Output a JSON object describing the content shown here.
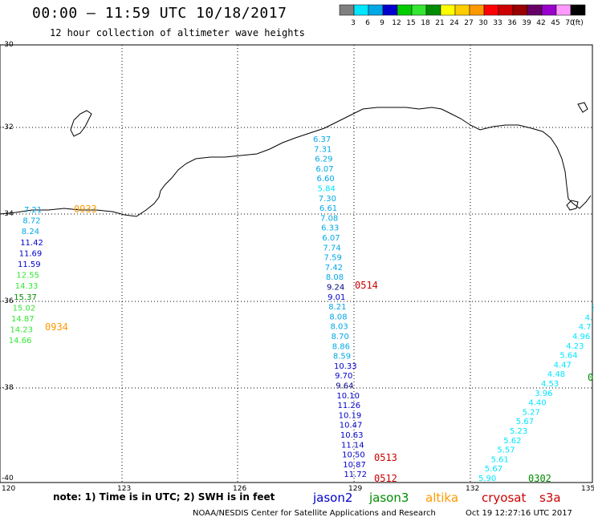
{
  "header": {
    "title": "00:00 – 11:59 UTC 10/18/2017",
    "subtitle": "12 hour collection of altimeter wave heights"
  },
  "legend": {
    "unit": "(ft)",
    "bins": [
      {
        "label": "3",
        "color": "#7f7f7f"
      },
      {
        "label": "6",
        "color": "#00e6ff"
      },
      {
        "label": "9",
        "color": "#00a8e6"
      },
      {
        "label": "12",
        "color": "#0000cc"
      },
      {
        "label": "15",
        "color": "#00cc00"
      },
      {
        "label": "18",
        "color": "#33e633"
      },
      {
        "label": "21",
        "color": "#008c00"
      },
      {
        "label": "24",
        "color": "#ffff00"
      },
      {
        "label": "27",
        "color": "#ffcc00"
      },
      {
        "label": "30",
        "color": "#ff9900"
      },
      {
        "label": "33",
        "color": "#ff0000"
      },
      {
        "label": "36",
        "color": "#cc0000"
      },
      {
        "label": "39",
        "color": "#990000"
      },
      {
        "label": "42",
        "color": "#660066"
      },
      {
        "label": "45",
        "color": "#9900cc"
      },
      {
        "label": "70",
        "color": "#ff99ff"
      },
      {
        "label": "",
        "color": "#000000"
      }
    ]
  },
  "axes": {
    "lat_ticks": [
      "-30",
      "-32",
      "-34",
      "-36",
      "-38",
      "-40"
    ],
    "lon_ticks": [
      "120",
      "123",
      "126",
      "129",
      "132",
      "135"
    ]
  },
  "passes": [
    {
      "id": "pass-west",
      "values": [
        {
          "v": "7.21",
          "c": "#00a8e6"
        },
        {
          "v": "8.72",
          "c": "#00a8e6"
        },
        {
          "v": "8.24",
          "c": "#00a8e6"
        },
        {
          "v": "11.42",
          "c": "#0000cc"
        },
        {
          "v": "11.69",
          "c": "#0000cc"
        },
        {
          "v": "11.59",
          "c": "#0000cc"
        },
        {
          "v": "12.55",
          "c": "#33e633"
        },
        {
          "v": "14.33",
          "c": "#33e633"
        },
        {
          "v": "15.37",
          "c": "#008c00"
        },
        {
          "v": "15.02",
          "c": "#33e633"
        },
        {
          "v": "14.87",
          "c": "#33e633"
        },
        {
          "v": "14.23",
          "c": "#33e633"
        },
        {
          "v": "14.66",
          "c": "#33e633"
        }
      ],
      "times": [
        {
          "t": "0933",
          "c": "#ff9900"
        },
        {
          "t": "0934",
          "c": "#ff9900"
        }
      ]
    },
    {
      "id": "pass-central",
      "values": [
        {
          "v": "6.37",
          "c": "#00a8e6"
        },
        {
          "v": "7.31",
          "c": "#00a8e6"
        },
        {
          "v": "6.29",
          "c": "#00a8e6"
        },
        {
          "v": "6.07",
          "c": "#00a8e6"
        },
        {
          "v": "6.60",
          "c": "#00a8e6"
        },
        {
          "v": "5.84",
          "c": "#00e6ff"
        },
        {
          "v": "7.30",
          "c": "#00a8e6"
        },
        {
          "v": "6.61",
          "c": "#00a8e6"
        },
        {
          "v": "7.08",
          "c": "#00a8e6"
        },
        {
          "v": "6.33",
          "c": "#00a8e6"
        },
        {
          "v": "6.07",
          "c": "#00a8e6"
        },
        {
          "v": "7.74",
          "c": "#00a8e6"
        },
        {
          "v": "7.59",
          "c": "#00a8e6"
        },
        {
          "v": "7.42",
          "c": "#00a8e6"
        },
        {
          "v": "8.08",
          "c": "#00a8e6"
        },
        {
          "v": "9.24",
          "c": "#000080"
        },
        {
          "v": "9.01",
          "c": "#0000cc"
        },
        {
          "v": "8.21",
          "c": "#00a8e6"
        },
        {
          "v": "8.08",
          "c": "#00a8e6"
        },
        {
          "v": "8.03",
          "c": "#00a8e6"
        },
        {
          "v": "8.70",
          "c": "#00a8e6"
        },
        {
          "v": "8.86",
          "c": "#00a8e6"
        },
        {
          "v": "8.59",
          "c": "#00a8e6"
        },
        {
          "v": "10.33",
          "c": "#0000cc"
        },
        {
          "v": "9.70",
          "c": "#0000cc"
        },
        {
          "v": "9.64",
          "c": "#000080"
        },
        {
          "v": "10.10",
          "c": "#0000cc"
        },
        {
          "v": "11.26",
          "c": "#0000cc"
        },
        {
          "v": "10.19",
          "c": "#0000cc"
        },
        {
          "v": "10.47",
          "c": "#0000cc"
        },
        {
          "v": "10.63",
          "c": "#0000cc"
        },
        {
          "v": "11.14",
          "c": "#0000cc"
        },
        {
          "v": "10.50",
          "c": "#0000cc"
        },
        {
          "v": "10.87",
          "c": "#0000cc"
        },
        {
          "v": "11.72",
          "c": "#0000cc"
        }
      ],
      "times": [
        {
          "t": "0514",
          "c": "#cc0000"
        },
        {
          "t": "0513",
          "c": "#cc0000"
        },
        {
          "t": "0512",
          "c": "#cc0000"
        }
      ]
    },
    {
      "id": "pass-east",
      "values": [
        {
          "v": "3",
          "c": "#00e6ff"
        },
        {
          "v": "4.",
          "c": "#00e6ff"
        },
        {
          "v": "4.7",
          "c": "#00e6ff"
        },
        {
          "v": "4.96",
          "c": "#00e6ff"
        },
        {
          "v": "4.23",
          "c": "#00e6ff"
        },
        {
          "v": "5.64",
          "c": "#00e6ff"
        },
        {
          "v": "4.47",
          "c": "#00e6ff"
        },
        {
          "v": "4.48",
          "c": "#00e6ff"
        },
        {
          "v": "4.53",
          "c": "#00e6ff"
        },
        {
          "v": "3.96",
          "c": "#00e6ff"
        },
        {
          "v": "4.40",
          "c": "#00e6ff"
        },
        {
          "v": "5.27",
          "c": "#00e6ff"
        },
        {
          "v": "5.67",
          "c": "#00e6ff"
        },
        {
          "v": "5.23",
          "c": "#00e6ff"
        },
        {
          "v": "5.62",
          "c": "#00e6ff"
        },
        {
          "v": "5.57",
          "c": "#00e6ff"
        },
        {
          "v": "5.61",
          "c": "#00e6ff"
        },
        {
          "v": "5.67",
          "c": "#00e6ff"
        },
        {
          "v": "5.90",
          "c": "#00e6ff"
        }
      ],
      "times": [
        {
          "t": "0302",
          "c": "#008c00"
        },
        {
          "t": "0",
          "c": "#008c00"
        }
      ]
    }
  ],
  "notes": {
    "note_text": "note: 1) Time is in UTC; 2) SWH is in feet",
    "satellites": [
      {
        "name": "jason2",
        "color": "#0000cc"
      },
      {
        "name": "jason3",
        "color": "#008c00"
      },
      {
        "name": "altika",
        "color": "#ff9900"
      },
      {
        "name": "cryosat",
        "color": "#cc0000"
      },
      {
        "name": "s3a",
        "color": "#cc0000"
      }
    ],
    "credit": "NOAA/NESDIS Center for Satellite Applications and Research",
    "timestamp": "Oct 19 12:27:16 UTC 2017"
  }
}
